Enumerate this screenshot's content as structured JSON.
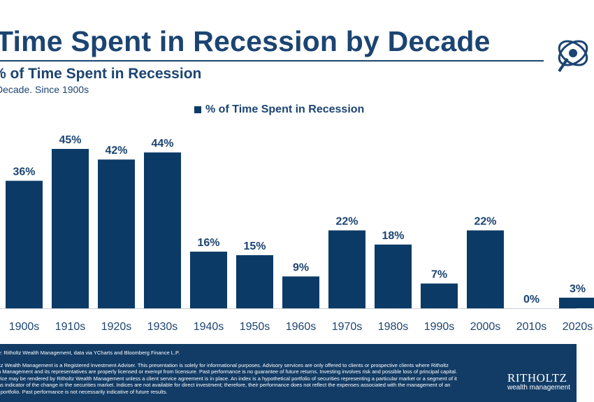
{
  "header": {
    "title": "Time Spent in Recession by Decade"
  },
  "chart_data": {
    "type": "bar",
    "title": "% of Time Spent in Recession",
    "subtitle": "Decade. Since 1900s",
    "legend": "% of Time Spent in Recession",
    "legend_position": "top-center",
    "categories": [
      "1900s",
      "1910s",
      "1920s",
      "1930s",
      "1940s",
      "1950s",
      "1960s",
      "1970s",
      "1980s",
      "1990s",
      "2000s",
      "2010s",
      "2020s"
    ],
    "series": [
      {
        "name": "% of Time Spent in Recession",
        "values": [
          36,
          45,
          42,
          44,
          16,
          15,
          9,
          22,
          18,
          7,
          22,
          0,
          3
        ],
        "labels": [
          "36%",
          "45%",
          "42%",
          "44%",
          "16%",
          "15%",
          "9%",
          "22%",
          "18%",
          "7%",
          "22%",
          "0%",
          "3%"
        ]
      }
    ],
    "ylim": [
      0,
      50
    ],
    "grid": false,
    "bar_color": "#0b3a66"
  },
  "footer": {
    "source": "e: Ritholtz Wealth Management, data via YCharts and Bloomberg Finance L.P.",
    "disclaimer_lines": [
      "ltz Wealth Management is a Registered Investment Adviser. This presentation is solely for informational purposes. Advisory services are only offered to clients or prospective clients where Ritholtz",
      "h Management and its representatives are properly licensed or exempt from licensure. Past performance is no guarantee of future returns. Investing involves risk and possible loss of principal capital.",
      "vice may be rendered by Ritholtz Wealth Management unless a client service agreement is in place. An index is a hypothetical portfolio of securities representing a particular market or a segment of it",
      "as indicator of the change in the securities market. Indices are not available for direct investment; therefore, their performance does not reflect the expenses associated with the management of an",
      "l portfolio. Past performance is not necessarily indicative of future results."
    ],
    "brand_name": "RITHOLTZ",
    "brand_sub": "wealth management"
  }
}
